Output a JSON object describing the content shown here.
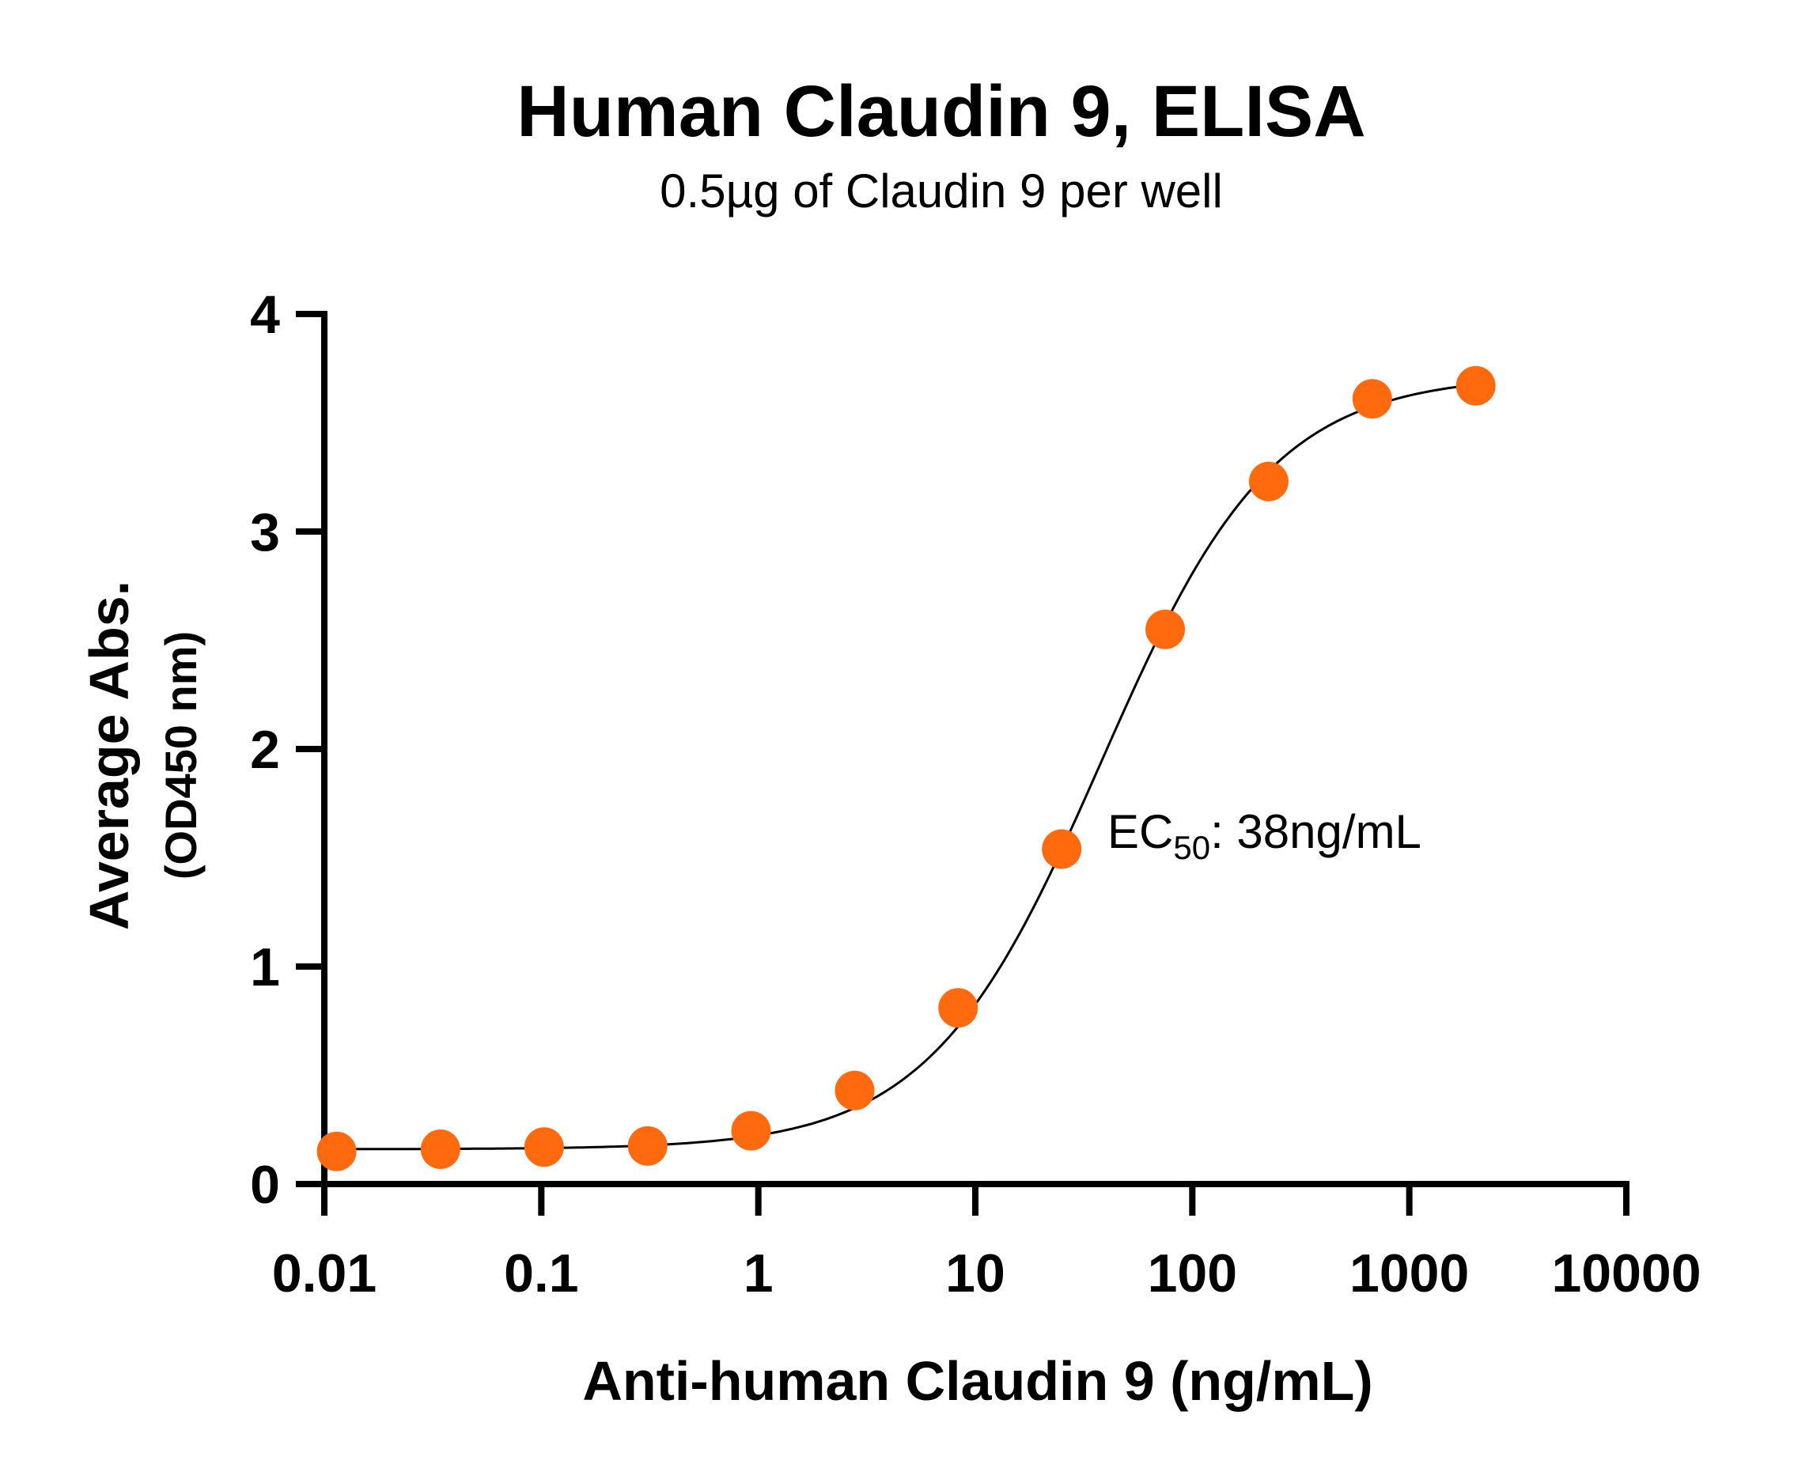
{
  "chart_data": {
    "type": "scatter",
    "title": "Human Claudin 9, ELISA",
    "subtitle": "0.5µg of Claudin 9 per well",
    "xlabel": "Anti-human Claudin 9 (ng/mL)",
    "ylabel": "Average Abs.",
    "ylabel_unit": "(OD450 nm)",
    "x_scale": "log",
    "xlim": [
      0.01,
      10000
    ],
    "ylim": [
      0,
      4
    ],
    "x_ticks": [
      0.01,
      0.1,
      1,
      10,
      100,
      1000,
      10000
    ],
    "x_tick_labels": [
      "0.01",
      "0.1",
      "1",
      "10",
      "100",
      "1000",
      "10000"
    ],
    "y_ticks": [
      0,
      1,
      2,
      3,
      4
    ],
    "y_tick_labels": [
      "0",
      "1",
      "2",
      "3",
      "4"
    ],
    "grid": false,
    "series": [
      {
        "x": [
          0.0114,
          0.0343,
          0.103,
          0.309,
          0.926,
          2.78,
          8.33,
          25.0,
          75.0,
          225,
          675,
          2025
        ],
        "y": [
          0.15,
          0.16,
          0.17,
          0.175,
          0.245,
          0.43,
          0.81,
          1.54,
          2.55,
          3.23,
          3.61,
          3.67
        ],
        "color": "#FF6A0E",
        "fit": {
          "model": "4PL",
          "bottom": 0.16,
          "top": 3.72,
          "ec50": 38,
          "hill": 1.1,
          "color": "#000000"
        }
      }
    ],
    "annotations": [
      {
        "prefix": "EC",
        "subscript": "50",
        "suffix": ": 38ng/mL"
      }
    ]
  }
}
